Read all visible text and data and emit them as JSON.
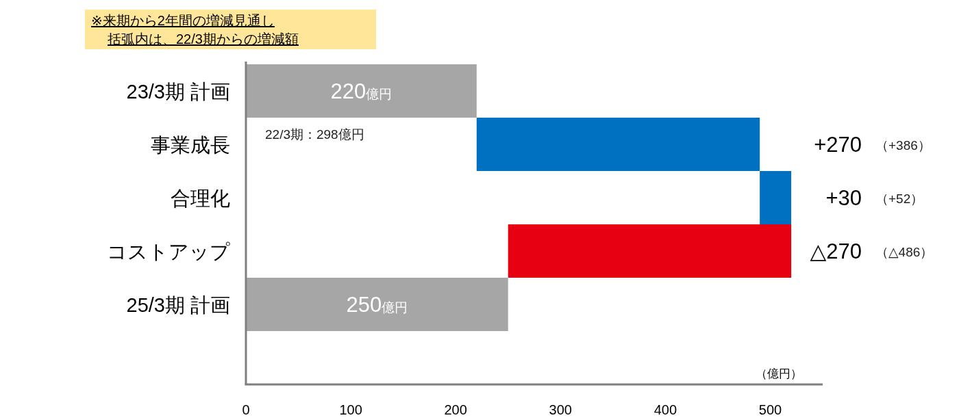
{
  "chart_data": {
    "type": "bar",
    "orientation": "horizontal",
    "categories": [
      "23/3期 計画",
      "事業成長",
      "合理化",
      "コストアップ",
      "25/3期 計画"
    ],
    "values": [
      220,
      270,
      30,
      -270,
      250
    ],
    "base": [
      0,
      220,
      490,
      520,
      0
    ],
    "colors": [
      "#a6a6a6",
      "#0070c0",
      "#0070c0",
      "#e60012",
      "#a6a6a6"
    ],
    "value_labels": [
      "220億円",
      "+270",
      "+30",
      "△270",
      "250億円"
    ],
    "xlabel": "（億円）",
    "xlim": [
      0,
      550
    ],
    "xticks": [
      0,
      100,
      200,
      300,
      400,
      500
    ],
    "annotations": [
      "※来期から2年間の増減見通し",
      "括弧内は、22/3期からの増減額",
      "22/3期：298億円",
      "（+386）",
      "（+52）",
      "（△486）"
    ]
  }
}
